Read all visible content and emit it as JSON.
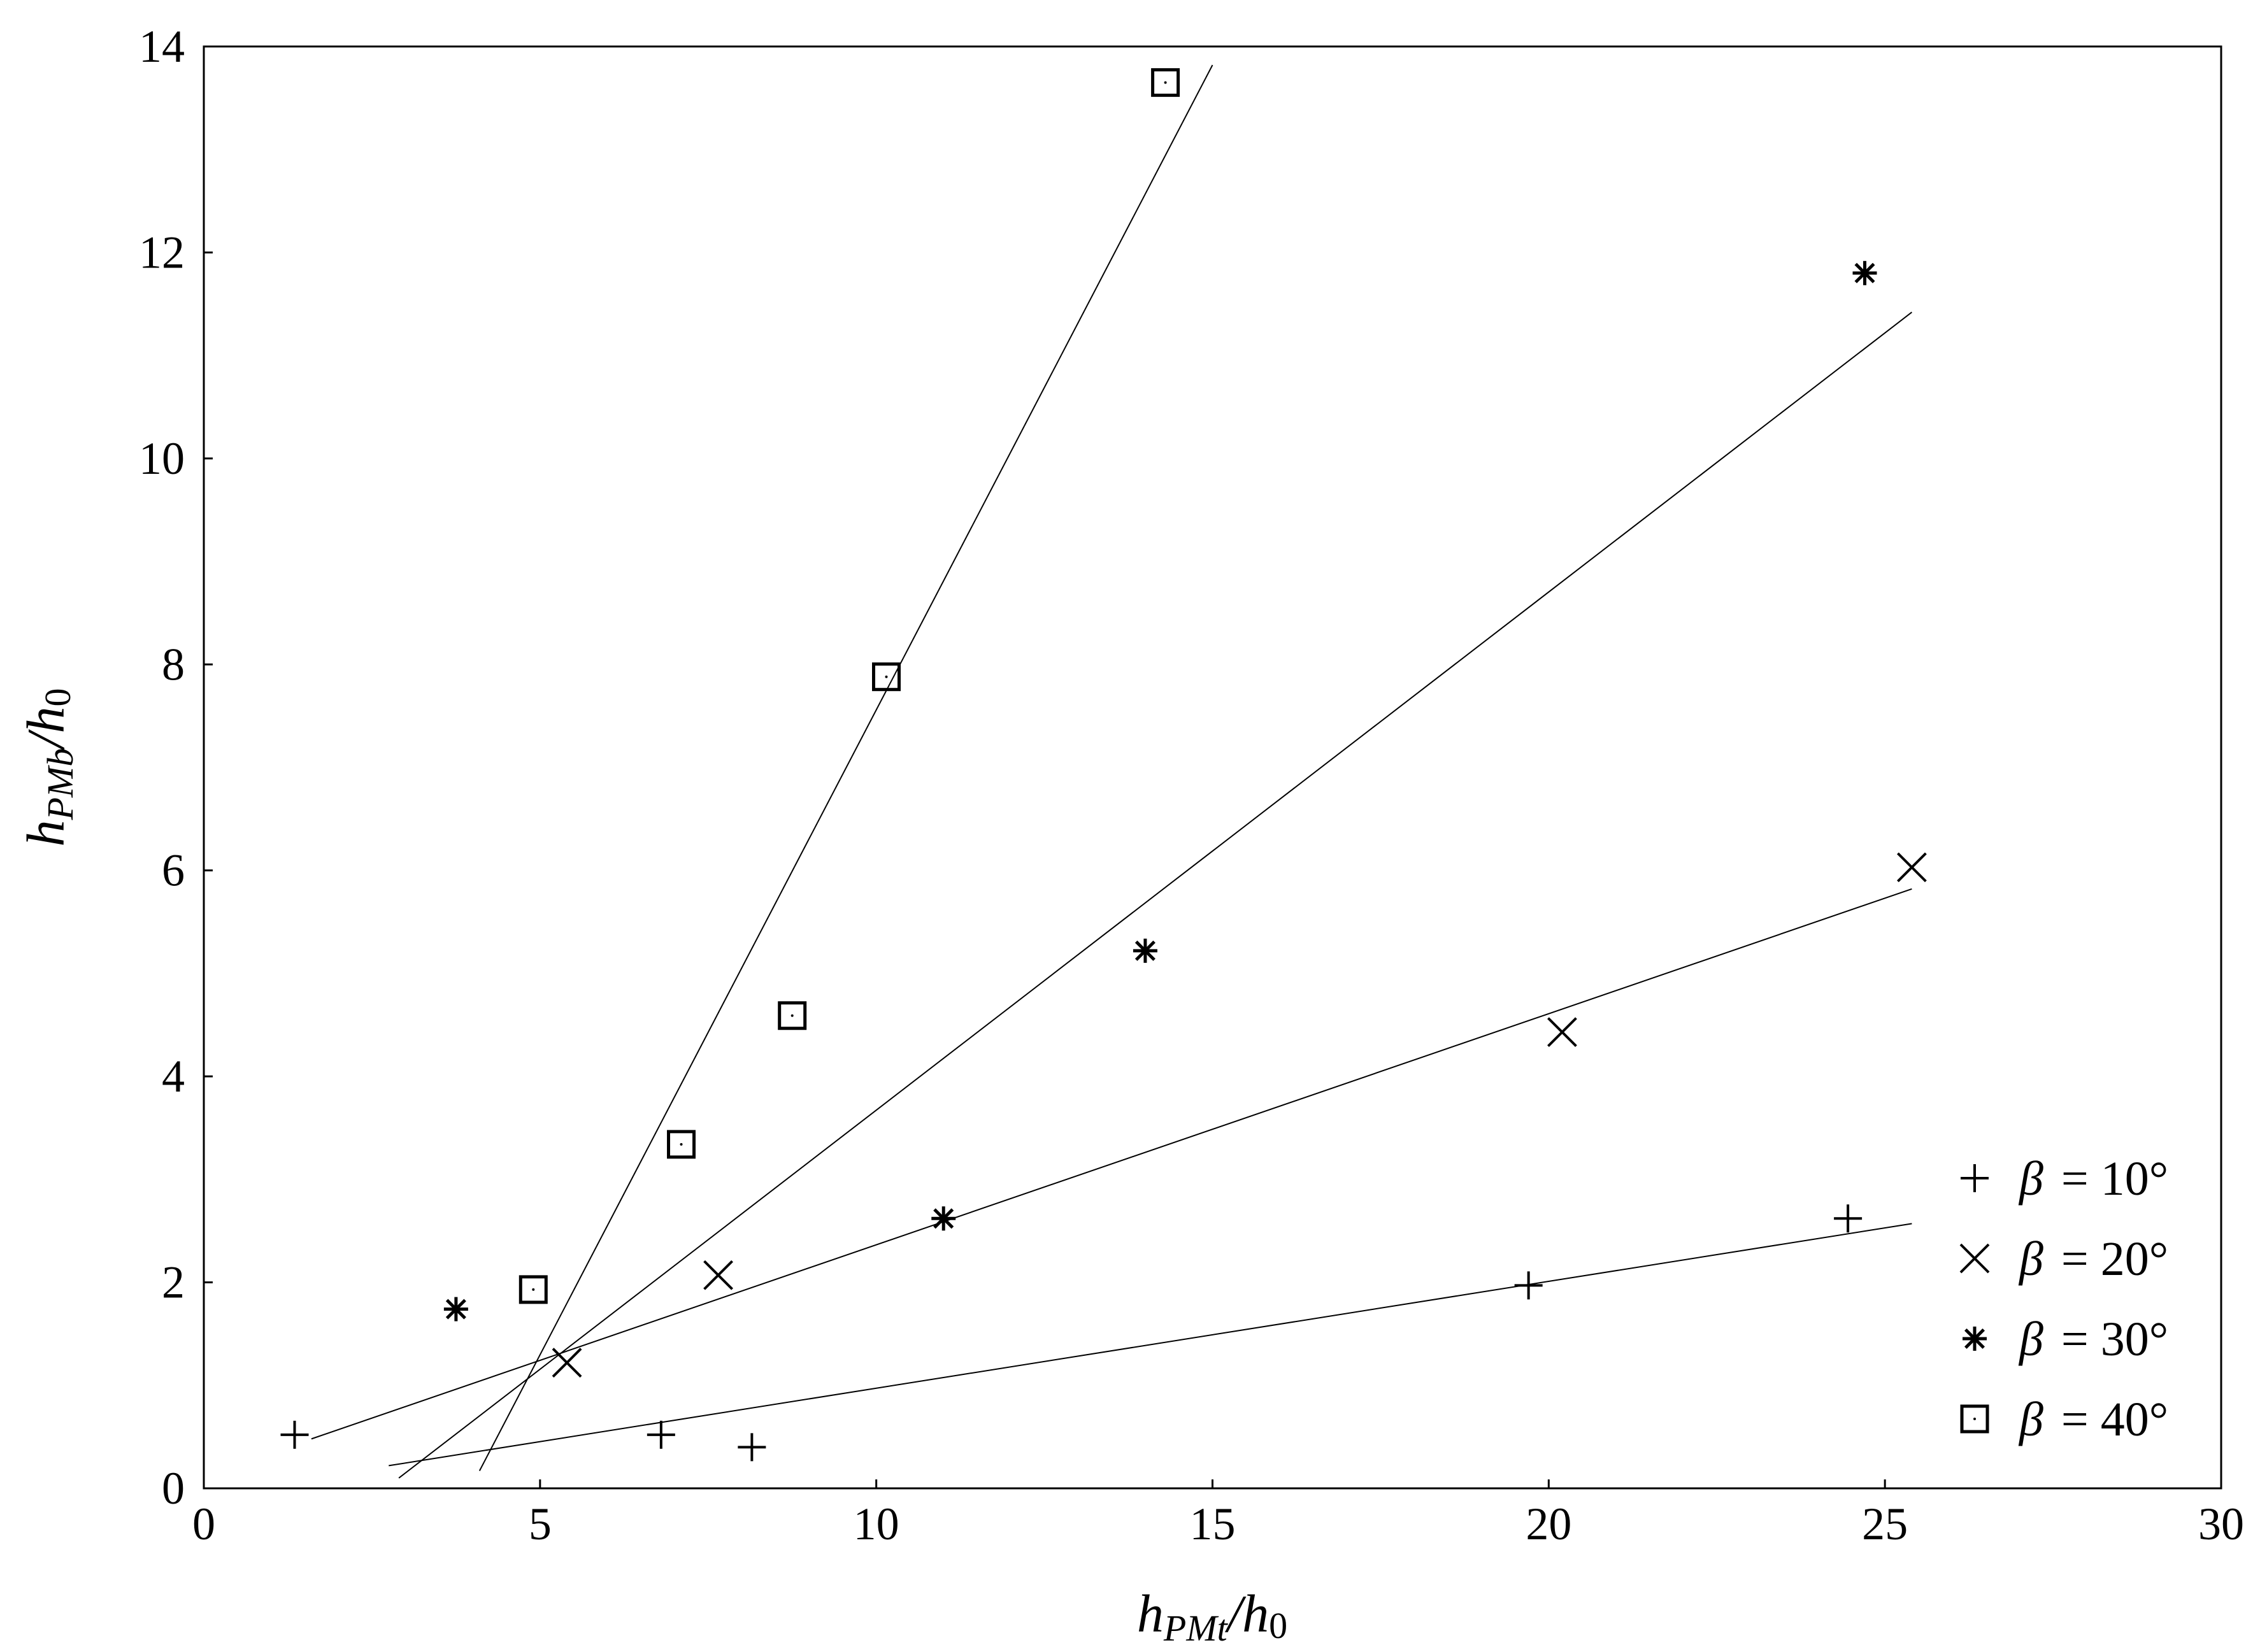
{
  "chart_data": {
    "type": "scatter",
    "title": "",
    "xlabel": {
      "main": "h",
      "sub": "PMt",
      "rest": "/h",
      "rest_sub": "0"
    },
    "ylabel": {
      "main": "h",
      "sub": "PMb",
      "rest": "/h",
      "rest_sub": "0"
    },
    "xlim": [
      0,
      30
    ],
    "ylim": [
      0,
      14
    ],
    "xticks": [
      0,
      5,
      10,
      15,
      20,
      25,
      30
    ],
    "yticks": [
      0,
      2,
      4,
      6,
      8,
      10,
      12,
      14
    ],
    "grid": false,
    "legend_position": "bottom-right",
    "series": [
      {
        "name": "β = 10°",
        "legend": {
          "symbol": "β",
          "value": "= 10°"
        },
        "marker": "plus",
        "points": [
          [
            1.35,
            0.52
          ],
          [
            6.8,
            0.52
          ],
          [
            8.15,
            0.4
          ],
          [
            19.7,
            1.97
          ],
          [
            24.45,
            2.62
          ]
        ],
        "fit_line": {
          "x": [
            2.75,
            25.4
          ],
          "y": [
            0.22,
            2.57
          ]
        }
      },
      {
        "name": "β = 20°",
        "legend": {
          "symbol": "β",
          "value": "= 20°"
        },
        "marker": "x",
        "points": [
          [
            5.4,
            1.22
          ],
          [
            7.65,
            2.07
          ],
          [
            20.2,
            4.43
          ],
          [
            25.4,
            6.03
          ]
        ],
        "fit_line": {
          "x": [
            1.6,
            25.4
          ],
          "y": [
            0.48,
            5.82
          ]
        }
      },
      {
        "name": "β = 30°",
        "legend": {
          "symbol": "β",
          "value": "= 30°"
        },
        "marker": "asterisk",
        "points": [
          [
            3.75,
            1.74
          ],
          [
            11.0,
            2.62
          ],
          [
            14.0,
            5.22
          ],
          [
            24.7,
            11.8
          ]
        ],
        "fit_line": {
          "x": [
            2.9,
            25.4
          ],
          "y": [
            0.1,
            11.42
          ]
        }
      },
      {
        "name": "β = 40°",
        "legend": {
          "symbol": "β",
          "value": "= 40°"
        },
        "marker": "square",
        "points": [
          [
            4.9,
            1.93
          ],
          [
            7.1,
            3.34
          ],
          [
            8.75,
            4.59
          ],
          [
            10.15,
            7.88
          ],
          [
            14.3,
            13.65
          ]
        ],
        "fit_line": {
          "x": [
            4.1,
            15.0
          ],
          "y": [
            0.17,
            13.82
          ]
        }
      }
    ]
  }
}
